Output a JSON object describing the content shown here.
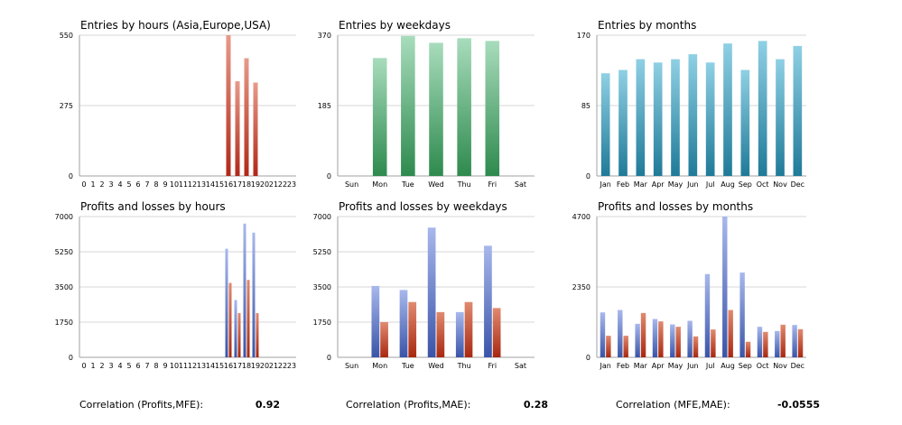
{
  "colors": {
    "entries_hours": [
      "#e89a8a",
      "#b02818"
    ],
    "entries_weekdays": [
      "#a8dcbc",
      "#2e8a4e"
    ],
    "entries_months": [
      "#8fd0e4",
      "#1f7a98"
    ],
    "profit": [
      "#a8b8ec",
      "#3a54a8"
    ],
    "loss": [
      "#e08a70",
      "#a82810"
    ]
  },
  "chart_data": [
    {
      "type": "bar",
      "title": "Entries by hours (Asia,Europe,USA)",
      "categories": [
        "0",
        "1",
        "2",
        "3",
        "4",
        "5",
        "6",
        "7",
        "8",
        "9",
        "10",
        "11",
        "12",
        "13",
        "14",
        "15",
        "16",
        "17",
        "18",
        "19",
        "20",
        "21",
        "22",
        "23"
      ],
      "series": [
        {
          "values": [
            0,
            0,
            0,
            0,
            0,
            0,
            0,
            0,
            0,
            0,
            0,
            0,
            0,
            0,
            0,
            0,
            550,
            370,
            460,
            365,
            0,
            0,
            0,
            0
          ]
        }
      ],
      "yticks": [
        "0",
        "275",
        "550"
      ],
      "ylim": [
        0,
        550
      ]
    },
    {
      "type": "bar",
      "title": "Entries by weekdays",
      "categories": [
        "Sun",
        "Mon",
        "Tue",
        "Wed",
        "Thu",
        "Fri",
        "Sat"
      ],
      "series": [
        {
          "values": [
            0,
            310,
            368,
            350,
            362,
            355,
            0
          ]
        }
      ],
      "yticks": [
        "0",
        "185",
        "370"
      ],
      "ylim": [
        0,
        370
      ]
    },
    {
      "type": "bar",
      "title": "Entries by months",
      "categories": [
        "Jan",
        "Feb",
        "Mar",
        "Apr",
        "May",
        "Jun",
        "Jul",
        "Aug",
        "Sep",
        "Oct",
        "Nov",
        "Dec"
      ],
      "series": [
        {
          "values": [
            124,
            128,
            141,
            137,
            141,
            147,
            137,
            160,
            128,
            163,
            141,
            157
          ]
        }
      ],
      "yticks": [
        "0",
        "85",
        "170"
      ],
      "ylim": [
        0,
        170
      ]
    },
    {
      "type": "bar",
      "title": "Profits and losses by hours",
      "categories": [
        "0",
        "1",
        "2",
        "3",
        "4",
        "5",
        "6",
        "7",
        "8",
        "9",
        "10",
        "11",
        "12",
        "13",
        "14",
        "15",
        "16",
        "17",
        "18",
        "19",
        "20",
        "21",
        "22",
        "23"
      ],
      "series": [
        {
          "values": [
            0,
            0,
            0,
            0,
            0,
            0,
            0,
            0,
            0,
            0,
            0,
            0,
            0,
            0,
            0,
            0,
            5400,
            2850,
            6650,
            6200,
            0,
            0,
            0,
            0
          ]
        },
        {
          "values": [
            0,
            0,
            0,
            0,
            0,
            0,
            0,
            0,
            0,
            0,
            0,
            0,
            0,
            0,
            0,
            0,
            3700,
            2200,
            3850,
            2200,
            0,
            0,
            0,
            0
          ]
        }
      ],
      "yticks": [
        "0",
        "1750",
        "3500",
        "5250",
        "7000"
      ],
      "ylim": [
        0,
        7000
      ]
    },
    {
      "type": "bar",
      "title": "Profits and losses by weekdays",
      "categories": [
        "Sun",
        "Mon",
        "Tue",
        "Wed",
        "Thu",
        "Fri",
        "Sat"
      ],
      "series": [
        {
          "values": [
            0,
            3550,
            3350,
            6450,
            2250,
            5550,
            0
          ]
        },
        {
          "values": [
            0,
            1750,
            2750,
            2250,
            2750,
            2450,
            0
          ]
        }
      ],
      "yticks": [
        "0",
        "1750",
        "3500",
        "5250",
        "7000"
      ],
      "ylim": [
        0,
        7000
      ]
    },
    {
      "type": "bar",
      "title": "Profits and losses by months",
      "categories": [
        "Jan",
        "Feb",
        "Mar",
        "Apr",
        "May",
        "Jun",
        "Jul",
        "Aug",
        "Sep",
        "Oct",
        "Nov",
        "Dec"
      ],
      "series": [
        {
          "values": [
            1500,
            1580,
            1120,
            1280,
            1100,
            1220,
            2780,
            4700,
            2830,
            1020,
            880,
            1080
          ]
        },
        {
          "values": [
            720,
            720,
            1480,
            1200,
            1020,
            700,
            930,
            1580,
            520,
            850,
            1090,
            940
          ]
        }
      ],
      "yticks": [
        "0",
        "2350",
        "4700"
      ],
      "ylim": [
        0,
        4700
      ]
    }
  ],
  "correlations": [
    {
      "label": "Correlation (Profits,MFE):",
      "value": "0.92"
    },
    {
      "label": "Correlation (Profits,MAE):",
      "value": "0.28"
    },
    {
      "label": "Correlation (MFE,MAE):",
      "value": "-0.0555"
    }
  ]
}
